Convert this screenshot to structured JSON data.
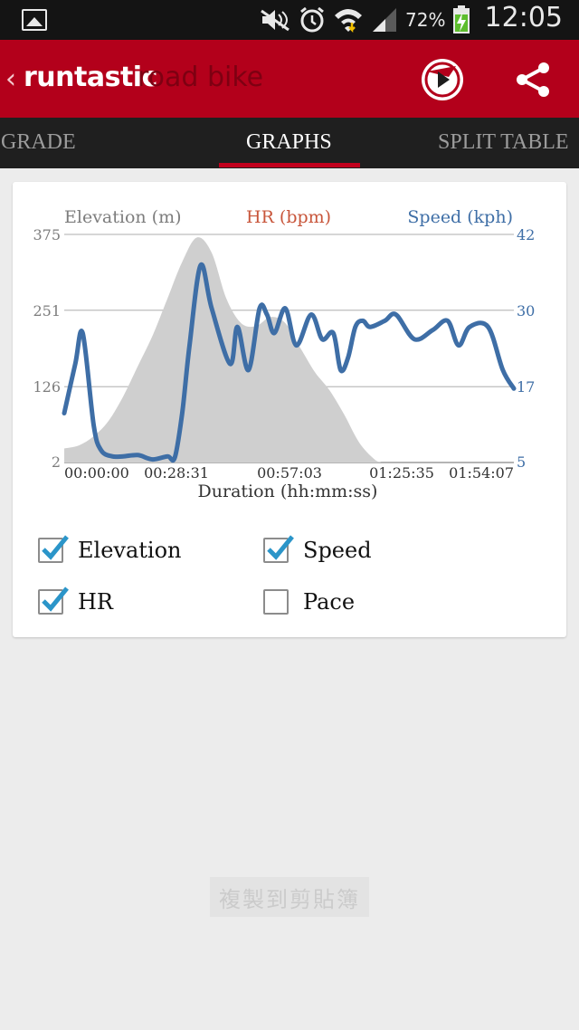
{
  "status_bar": {
    "battery_percent": "72%",
    "time": "12:05",
    "icons": [
      "gallery-icon",
      "mute-icon",
      "alarm-icon",
      "wifi-icon",
      "signal-icon",
      "battery-charging-icon"
    ]
  },
  "app_bar": {
    "brand_bold": "runtastic",
    "brand_light": "road bike",
    "back_icon": "chevron-left-icon",
    "actions": [
      "play-icon",
      "share-icon"
    ]
  },
  "tabs": [
    {
      "label": "GRADE",
      "active": false
    },
    {
      "label": "GRAPHS",
      "active": true
    },
    {
      "label": "SPLIT TABLE",
      "active": false
    }
  ],
  "colors": {
    "brand_red": "#b3001b",
    "speed_line": "#3e6ea6",
    "elevation_fill": "#cfcfcf",
    "hr_label": "#c8553a",
    "checkbox_check": "#2b95c9"
  },
  "chart_data": {
    "type": "area",
    "series_labels": {
      "elevation": "Elevation (m)",
      "hr": "HR (bpm)",
      "speed": "Speed (kph)"
    },
    "xlabel": "Duration (hh:mm:ss)",
    "x_ticks": [
      "00:00:00",
      "00:28:31",
      "00:57:03",
      "01:25:35",
      "01:54:07"
    ],
    "y_left_ticks": [
      "375",
      "251",
      "126",
      "2"
    ],
    "y_right_ticks": [
      "42",
      "30",
      "17",
      "5"
    ],
    "x_range_min": [
      0,
      122
    ],
    "y_left_range": [
      2,
      375
    ],
    "y_right_range": [
      5,
      42
    ],
    "grid": true,
    "series": [
      {
        "name": "Elevation (m)",
        "kind": "area",
        "axis": "left",
        "x": [
          0,
          4,
          8,
          12,
          16,
          20,
          24,
          28,
          32,
          36,
          40,
          44,
          48,
          52,
          56,
          60,
          64,
          68,
          72,
          76,
          80,
          84,
          86
        ],
        "y": [
          25,
          30,
          45,
          70,
          110,
          160,
          210,
          270,
          330,
          370,
          345,
          270,
          230,
          225,
          240,
          230,
          190,
          150,
          120,
          80,
          35,
          8,
          2
        ]
      },
      {
        "name": "Speed (kph)",
        "kind": "line",
        "axis": "right",
        "x": [
          0,
          3,
          5,
          8,
          10,
          13,
          16,
          20,
          24,
          28,
          30,
          32,
          34,
          37,
          40,
          45,
          47,
          50,
          53,
          55,
          57,
          60,
          63,
          67,
          70,
          73,
          75,
          77,
          79,
          81,
          83,
          87,
          90,
          95,
          100,
          104,
          107,
          110,
          115,
          119,
          122
        ],
        "y": [
          13,
          21,
          26,
          11,
          7,
          6,
          6,
          6.2,
          5.5,
          6,
          5.8,
          13,
          24,
          37,
          30,
          21,
          27,
          20,
          30,
          29,
          26,
          30,
          24,
          29,
          25,
          26,
          20,
          22,
          27,
          28,
          27,
          28,
          29,
          25,
          26.5,
          28,
          24,
          27,
          27,
          20,
          17
        ]
      }
    ]
  },
  "legend_checkboxes": [
    {
      "label": "Elevation",
      "checked": true
    },
    {
      "label": "Speed",
      "checked": true
    },
    {
      "label": "HR",
      "checked": true
    },
    {
      "label": "Pace",
      "checked": false
    }
  ],
  "toast_text": "複製到剪貼簿"
}
